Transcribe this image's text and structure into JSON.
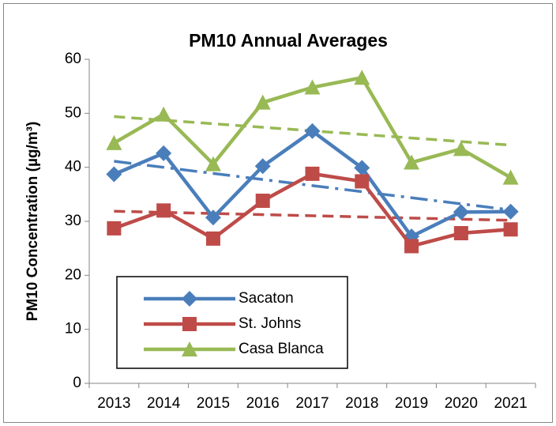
{
  "chart_data": {
    "type": "line",
    "title": "PM10 Annual Averages",
    "y_label": "PM10 Concentration (µg/m³)",
    "categories": [
      "2013",
      "2014",
      "2015",
      "2016",
      "2017",
      "2018",
      "2019",
      "2020",
      "2021"
    ],
    "series": [
      {
        "name": "Sacaton",
        "color": "#4a7ebb",
        "marker": "diamond",
        "trend_dash": "22 8 4 8",
        "values": [
          38.7,
          42.6,
          30.7,
          40.2,
          46.7,
          39.9,
          27.2,
          31.7,
          31.8
        ]
      },
      {
        "name": "St. Johns",
        "color": "#be4b48",
        "marker": "square",
        "trend_dash": "14 8",
        "values": [
          28.7,
          32.0,
          26.8,
          33.8,
          38.8,
          37.4,
          25.4,
          27.8,
          28.5
        ]
      },
      {
        "name": "Casa Blanca",
        "color": "#98b954",
        "marker": "triangle",
        "trend_dash": "14 8",
        "values": [
          44.5,
          49.8,
          40.6,
          52.0,
          54.8,
          56.6,
          40.9,
          43.4,
          38.1
        ]
      }
    ],
    "trendlines": true,
    "ylim": [
      0,
      60
    ],
    "yticks": [
      0,
      10,
      20,
      30,
      40,
      50,
      60
    ],
    "grid": false,
    "legend": "lower left"
  }
}
